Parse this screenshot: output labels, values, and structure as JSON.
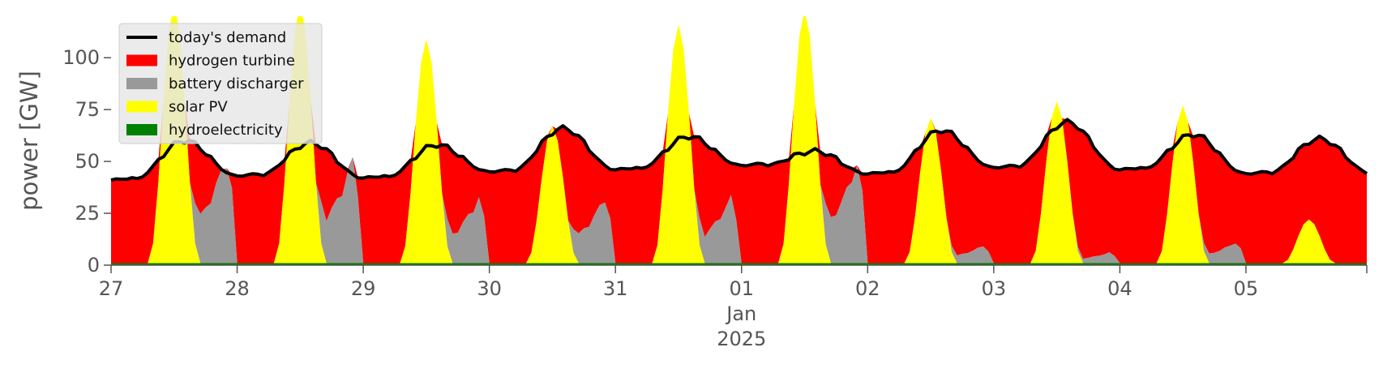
{
  "chart_data": {
    "type": "area",
    "title": "",
    "xlabel": "",
    "ylabel": "power [GW]",
    "ylim": [
      0,
      120
    ],
    "y_ticks": [
      0,
      25,
      50,
      75,
      100
    ],
    "x_start": "2024-12-27",
    "x_end": "2025-01-05T23:00",
    "x_ticks": [
      {
        "date": "2024-12-27",
        "label": "27"
      },
      {
        "date": "2024-12-28",
        "label": "28"
      },
      {
        "date": "2024-12-29",
        "label": "29"
      },
      {
        "date": "2024-12-30",
        "label": "30"
      },
      {
        "date": "2024-12-31",
        "label": "31"
      },
      {
        "date": "2025-01-01",
        "label": "01"
      },
      {
        "date": "2025-01-02",
        "label": "02"
      },
      {
        "date": "2025-01-03",
        "label": "03"
      },
      {
        "date": "2025-01-04",
        "label": "04"
      },
      {
        "date": "2025-01-05",
        "label": "05"
      }
    ],
    "x_sublabels": [
      "Jan",
      "2025"
    ],
    "grid": false,
    "legend_position": "top-left",
    "days": [
      "2024-12-27",
      "2024-12-28",
      "2024-12-29",
      "2024-12-30",
      "2024-12-31",
      "2025-01-01",
      "2025-01-02",
      "2025-01-03",
      "2025-01-04",
      "2025-01-05"
    ],
    "daily": {
      "demand_night_min_GW": [
        41,
        43,
        42,
        45,
        46,
        48,
        44,
        47,
        46,
        44
      ],
      "demand_day_max_GW": [
        60,
        59,
        58,
        66,
        62,
        55,
        65,
        69,
        63,
        61
      ],
      "solar_peak_GW": [
        125,
        125,
        108,
        66,
        115,
        122,
        70,
        78,
        76,
        21
      ],
      "battery_evening_peak_GW": [
        62,
        60,
        38,
        38,
        38,
        58,
        10,
        6,
        12,
        0
      ]
    },
    "series": [
      {
        "name": "today's demand",
        "kind": "line",
        "color": "#000000"
      },
      {
        "name": "hydrogen turbine",
        "kind": "area",
        "color": "#ff0000"
      },
      {
        "name": "battery discharger",
        "kind": "area",
        "color": "#999999"
      },
      {
        "name": "solar PV",
        "kind": "area",
        "color": "#ffff00"
      },
      {
        "name": "hydroelectricity",
        "kind": "area",
        "color": "#008000",
        "value_GW": 1
      }
    ]
  }
}
